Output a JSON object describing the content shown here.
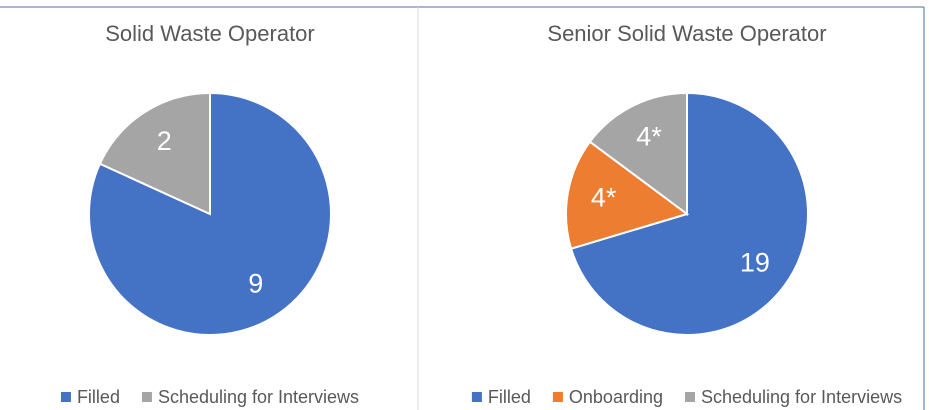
{
  "chart_data": [
    {
      "type": "pie",
      "title": "Solid Waste Operator",
      "categories": [
        "Filled",
        "Scheduling for Interviews"
      ],
      "values": [
        9,
        2
      ],
      "colors": [
        "#4472c4",
        "#a5a5a5"
      ],
      "legend": "bottom"
    },
    {
      "type": "pie",
      "title": "Senior Solid Waste Operator",
      "categories": [
        "Filled",
        "Onboarding",
        "Scheduling for Interviews"
      ],
      "values": [
        19,
        4,
        4
      ],
      "value_labels": [
        "19",
        "4*",
        "4*"
      ],
      "colors": [
        "#4472c4",
        "#ed7d31",
        "#a5a5a5"
      ],
      "legend": "bottom"
    }
  ]
}
